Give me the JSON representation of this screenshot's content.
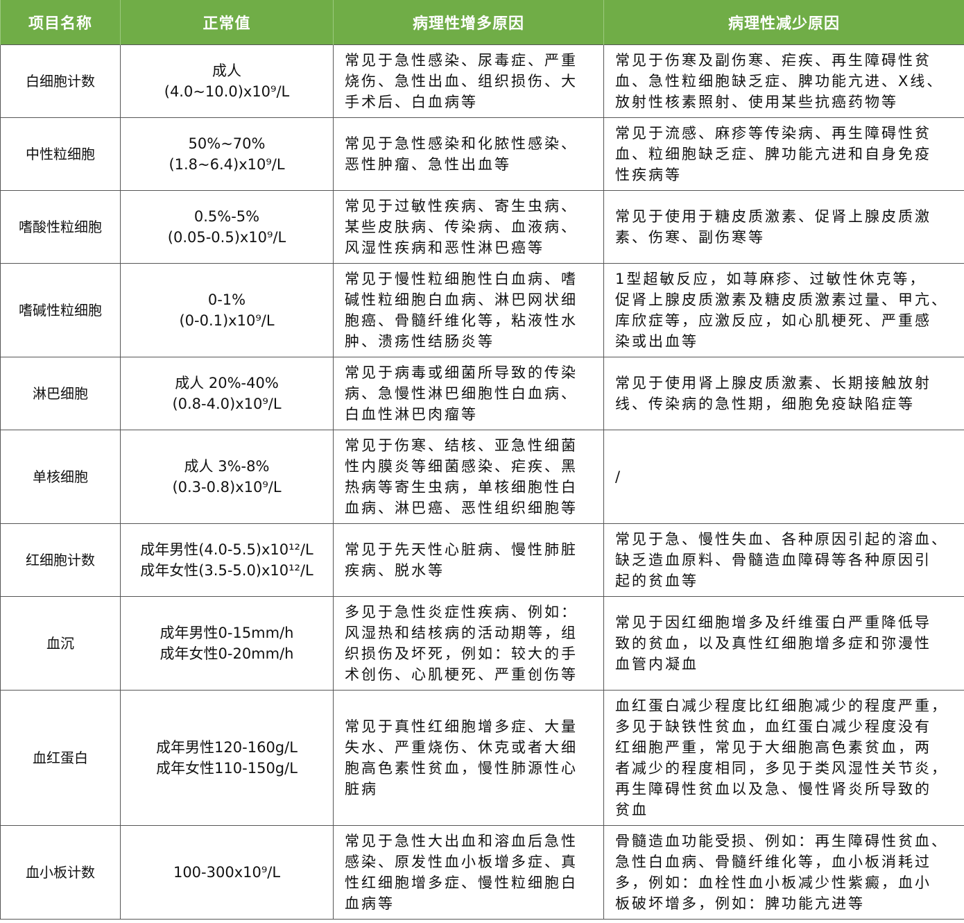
{
  "header": {
    "colors": {
      "header_bg": "#70ad47",
      "header_text": "#ffffff",
      "border": "#555555"
    },
    "columns": [
      "项目名称",
      "正常值",
      "病理性增多原因",
      "病理性减少原因"
    ]
  },
  "rows": [
    {
      "name": "白细胞计数",
      "normal": "成人\n(4.0~10.0)x10⁹/L",
      "increase": "常见于急性感染、尿毒症、严重\n烧伤、急性出血、组织损伤、大\n手术后、白血病等",
      "decrease": "常见于伤寒及副伤寒、疟疾、再生障碍性贫\n血、急性粒细胞缺乏症、脾功能亢进、X线、\n放射性核素照射、使用某些抗癌药物等"
    },
    {
      "name": "中性粒细胞",
      "normal": "50%~70%\n(1.8~6.4)x10⁹/L",
      "increase": "常见于急性感染和化脓性感染、\n恶性肿瘤、急性出血等",
      "decrease": "常见于流感、麻疹等传染病、再生障碍性贫\n血、粒细胞缺乏症、脾功能亢进和自身免疫\n性疾病等"
    },
    {
      "name": "嗜酸性粒细胞",
      "normal": "0.5%-5%\n(0.05-0.5)x10⁹/L",
      "increase": "常见于过敏性疾病、寄生虫病、\n某些皮肤病、传染病、血液病、\n风湿性疾病和恶性淋巴癌等",
      "decrease": "常见于使用于糖皮质激素、促肾上腺皮质激\n素、伤寒、副伤寒等"
    },
    {
      "name": "嗜碱性粒细胞",
      "normal": "0-1%\n(0-0.1)x10⁹/L",
      "increase": "常见于慢性粒细胞性白血病、嗜\n碱性粒细胞白血病、淋巴网状细\n胞癌、骨髓纤维化等，粘液性水\n肿、溃疡性结肠炎等",
      "decrease": "1型超敏反应，如荨麻疹、过敏性休克等，\n促肾上腺皮质激素及糖皮质激素过量、甲亢、\n库欣症等，应激反应，如心肌梗死、严重感\n染或出血等"
    },
    {
      "name": "淋巴细胞",
      "normal": "成人 20%-40%\n(0.8-4.0)x10⁹/L",
      "increase": "常见于病毒或细菌所导致的传染\n病、急慢性淋巴细胞性白血病、\n白血性淋巴肉瘤等",
      "decrease": "常见于使用肾上腺皮质激素、长期接触放射\n线、传染病的急性期，细胞免疫缺陷症等"
    },
    {
      "name": "单核细胞",
      "normal": "成人 3%-8%\n(0.3-0.8)x10⁹/L",
      "increase": "常见于伤寒、结核、亚急性细菌\n性内膜炎等细菌感染、疟疾、黑\n热病等寄生虫病，单核细胞性白\n血病、淋巴癌、恶性组织细胞等",
      "decrease": "/"
    },
    {
      "name": "红细胞计数",
      "normal": "成年男性(4.0-5.5)x10¹²/L\n成年女性(3.5-5.0)x10¹²/L",
      "increase": "常见于先天性心脏病、慢性肺脏\n疾病、脱水等",
      "decrease": "常见于急、慢性失血、各种原因引起的溶血、\n缺乏造血原料、骨髓造血障碍等各种原因引\n起的贫血等"
    },
    {
      "name": "血沉",
      "normal": "成年男性0-15mm/h\n成年女性0-20mm/h",
      "increase": "多见于急性炎症性疾病、例如：\n风湿热和结核病的活动期等，组\n织损伤及坏死，例如：较大的手\n术创伤、心肌梗死、严重创伤等",
      "decrease": "常见于因红细胞增多及纤维蛋白严重降低导\n致的贫血，以及真性红细胞增多症和弥漫性\n血管内凝血"
    },
    {
      "name": "血红蛋白",
      "normal": "成年男性120-160g/L\n成年女性110-150g/L",
      "increase": "常见于真性红细胞增多症、大量\n失水、严重烧伤、休克或者大细\n胞高色素性贫血，慢性肺源性心\n脏病",
      "decrease": "血红蛋白减少程度比红细胞减少的程度严重，\n多见于缺铁性贫血，血红蛋白减少程度没有\n红细胞严重，常见于大细胞高色素贫血，两\n者减少的程度相同，多见于类风湿性关节炎，\n再生障碍性贫血以及急、慢性肾炎所导致的\n贫血"
    },
    {
      "name": "血小板计数",
      "normal": "100-300x10⁹/L",
      "increase": "常见于急性大出血和溶血后急性\n感染、原发性血小板增多症、真\n性红细胞增多症、慢性粒细胞白\n血病等",
      "decrease": "骨髓造血功能受损、例如：再生障碍性贫血、\n急性白血病、骨髓纤维化等，血小板消耗过\n多，例如：血栓性血小板减少性紫癜，血小\n板破坏增多，例如：脾功能亢进等"
    }
  ]
}
